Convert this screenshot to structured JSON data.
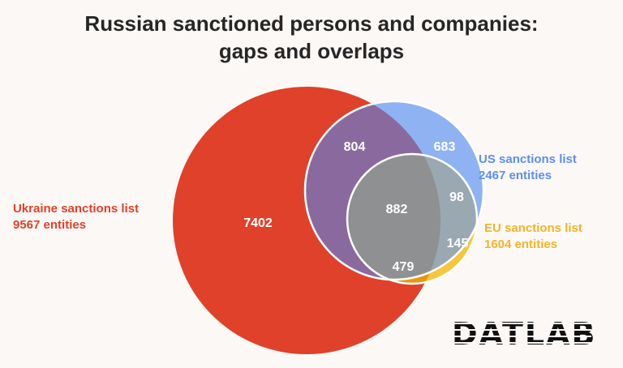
{
  "title": {
    "line1": "Russian sanctioned persons and companies:",
    "line2": "gaps and overlaps"
  },
  "sets": [
    {
      "key": "ukraine",
      "name": "Ukraine sanctions list",
      "count": "9567 entities",
      "color": "#e0412a"
    },
    {
      "key": "us",
      "name": "US sanctions list",
      "count": "2467 entities",
      "color": "#8fb2f2"
    },
    {
      "key": "eu",
      "name": "EU sanctions list",
      "count": "1604 entities",
      "color": "#f5c63e"
    }
  ],
  "regions": {
    "ukraine_only": "7402",
    "ukraine_us": "804",
    "us_only": "683",
    "all_three": "882",
    "us_eu": "98",
    "eu_only": "145",
    "ukraine_eu": "479"
  },
  "region_colors": {
    "ukraine_us": "#8a6a9e",
    "ukraine_eu": "#e8960f",
    "us_eu": "#9aa8b2",
    "all_three": "#8f9092"
  },
  "logo": "DATLAB"
}
